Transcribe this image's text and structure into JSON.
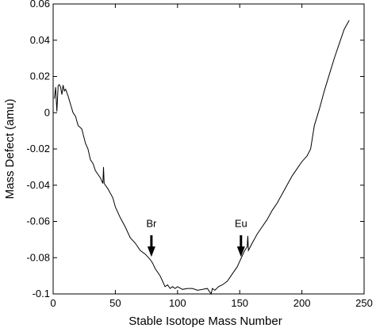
{
  "chart_data": {
    "type": "line",
    "title": "",
    "xlabel": "Stable Isotope Mass Number",
    "ylabel": "Mass Defect (amu)",
    "xlim": [
      0,
      250
    ],
    "ylim": [
      -0.1,
      0.06
    ],
    "grid": false,
    "x_ticks": [
      0,
      50,
      100,
      150,
      200,
      250
    ],
    "x_tick_labels": [
      "0",
      "50",
      "100",
      "150",
      "200",
      "250"
    ],
    "y_ticks": [
      -0.1,
      -0.08,
      -0.06,
      -0.04,
      -0.02,
      0,
      0.02,
      0.04,
      0.06
    ],
    "y_tick_labels": [
      "-0.1",
      "-0.08",
      "-0.06",
      "-0.04",
      "-0.02",
      "0",
      "0.02",
      "0.04",
      "0.06"
    ],
    "series": [
      {
        "x": [
          1,
          2,
          3,
          4,
          5,
          6,
          7,
          8,
          9,
          10,
          12,
          14,
          16,
          18,
          20,
          23,
          26,
          28,
          30,
          32,
          34,
          36,
          38,
          40,
          40.5,
          41,
          44,
          48,
          50,
          54,
          58,
          62,
          66,
          70,
          74,
          78,
          80,
          82,
          84,
          86,
          88,
          90,
          92,
          94,
          96,
          98,
          100,
          104,
          108,
          112,
          116,
          120,
          124,
          127,
          128,
          130,
          133,
          136,
          140,
          144,
          148,
          150,
          152,
          154,
          156,
          156.5,
          157,
          160,
          164,
          168,
          172,
          176,
          180,
          184,
          188,
          192,
          196,
          200,
          204,
          207,
          210,
          214,
          218,
          222,
          226,
          230,
          234,
          238
        ],
        "y": [
          0.0078,
          0.0141,
          0.0007,
          0.0149,
          0.0155,
          0.0141,
          0.01,
          0.0152,
          0.012,
          0.0129,
          0.0093,
          0.0045,
          0.0,
          -0.002,
          -0.007,
          -0.009,
          -0.017,
          -0.02,
          -0.026,
          -0.028,
          -0.032,
          -0.034,
          -0.036,
          -0.039,
          -0.03,
          -0.039,
          -0.042,
          -0.047,
          -0.052,
          -0.058,
          -0.063,
          -0.069,
          -0.072,
          -0.076,
          -0.078,
          -0.081,
          -0.083,
          -0.086,
          -0.088,
          -0.09,
          -0.093,
          -0.096,
          -0.095,
          -0.097,
          -0.096,
          -0.097,
          -0.096,
          -0.0975,
          -0.097,
          -0.097,
          -0.098,
          -0.0975,
          -0.097,
          -0.1,
          -0.097,
          -0.098,
          -0.096,
          -0.095,
          -0.093,
          -0.089,
          -0.085,
          -0.082,
          -0.079,
          -0.076,
          -0.074,
          -0.068,
          -0.076,
          -0.072,
          -0.067,
          -0.063,
          -0.059,
          -0.054,
          -0.05,
          -0.045,
          -0.04,
          -0.035,
          -0.031,
          -0.027,
          -0.024,
          -0.02,
          -0.007,
          0.002,
          0.012,
          0.021,
          0.03,
          0.038,
          0.046,
          0.051
        ]
      }
    ],
    "annotations": [
      {
        "text": "Br",
        "x": 79,
        "label_y": -0.063,
        "arrow_top_y": -0.0676,
        "arrow_tip_y": -0.0795
      },
      {
        "text": "Eu",
        "x": 151,
        "label_y": -0.063,
        "arrow_top_y": -0.0676,
        "arrow_tip_y": -0.0795
      }
    ]
  }
}
